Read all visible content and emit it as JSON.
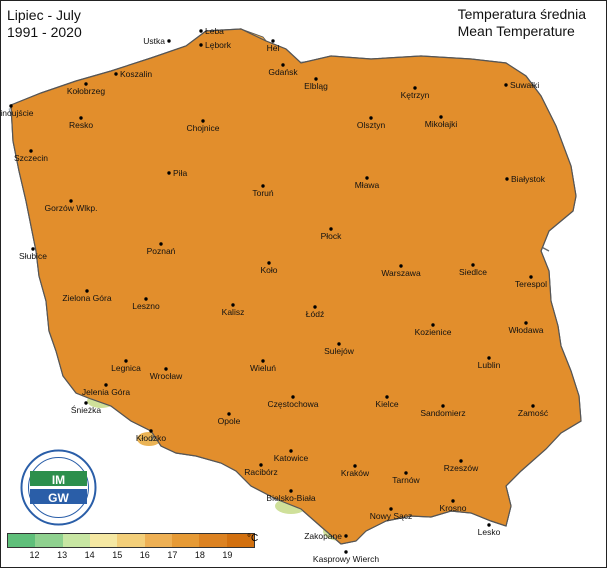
{
  "title_left": {
    "line1": "Lipiec - July",
    "line2": "1991 - 2020"
  },
  "title_right": {
    "line1": "Temperatura średnia",
    "line2": "Mean Temperature"
  },
  "legend": {
    "labels": [
      "12",
      "13",
      "14",
      "15",
      "16",
      "17",
      "18",
      "19"
    ],
    "unit": "°C",
    "colors": [
      "#5fbf7a",
      "#8fd18f",
      "#c8e6a3",
      "#f5e8a3",
      "#f3cf7a",
      "#eeb054",
      "#e69a35",
      "#dc8221",
      "#d2700f"
    ]
  },
  "logo": {
    "text": "IMGW",
    "colors": [
      "#2c8f4c",
      "#2a5ea8"
    ]
  },
  "map": {
    "land_color": "#e28e2c",
    "cool_color": "#e8a646",
    "coast_color": "#eab355",
    "mountain_colors": [
      "#f0cc74",
      "#cfe09a",
      "#8fd18f"
    ],
    "sea_color": "#ffffff",
    "river_color": "#666b6e",
    "border_color": "#555555"
  },
  "cities": [
    {
      "name": "Hel"
    },
    {
      "name": "Łeba"
    },
    {
      "name": "Ustka"
    },
    {
      "name": "Lębork"
    },
    {
      "name": "Gdańsk"
    },
    {
      "name": "Elbląg"
    },
    {
      "name": "Kętrzyn"
    },
    {
      "name": "Suwałki"
    },
    {
      "name": "Koszalin"
    },
    {
      "name": "Kołobrzeg"
    },
    {
      "name": "Świnoujście"
    },
    {
      "name": "Resko"
    },
    {
      "name": "Chojnice"
    },
    {
      "name": "Olsztyn"
    },
    {
      "name": "Mikołajki"
    },
    {
      "name": "Szczecin"
    },
    {
      "name": "Piła"
    },
    {
      "name": "Toruń"
    },
    {
      "name": "Mława"
    },
    {
      "name": "Białystok"
    },
    {
      "name": "Gorzów Wlkp."
    },
    {
      "name": "Płock"
    },
    {
      "name": "Poznań"
    },
    {
      "name": "Słubice"
    },
    {
      "name": "Koło"
    },
    {
      "name": "Warszawa"
    },
    {
      "name": "Siedlce"
    },
    {
      "name": "Terespol"
    },
    {
      "name": "Zielona Góra"
    },
    {
      "name": "Leszno"
    },
    {
      "name": "Kalisz"
    },
    {
      "name": "Łódź"
    },
    {
      "name": "Kozienice"
    },
    {
      "name": "Włodawa"
    },
    {
      "name": "Sulejów"
    },
    {
      "name": "Legnica"
    },
    {
      "name": "Wrocław"
    },
    {
      "name": "Wieluń"
    },
    {
      "name": "Lublin"
    },
    {
      "name": "Jelenia Góra"
    },
    {
      "name": "Śnieżka"
    },
    {
      "name": "Częstochowa"
    },
    {
      "name": "Kielce"
    },
    {
      "name": "Sandomierz"
    },
    {
      "name": "Zamość"
    },
    {
      "name": "Opole"
    },
    {
      "name": "Kłodzko"
    },
    {
      "name": "Katowice"
    },
    {
      "name": "Racibórz"
    },
    {
      "name": "Kraków"
    },
    {
      "name": "Tarnów"
    },
    {
      "name": "Rzeszów"
    },
    {
      "name": "Bielsko-Biała"
    },
    {
      "name": "Nowy Sącz"
    },
    {
      "name": "Krosno"
    },
    {
      "name": "Lesko"
    },
    {
      "name": "Zakopane"
    },
    {
      "name": "Kasprowy Wierch"
    }
  ]
}
